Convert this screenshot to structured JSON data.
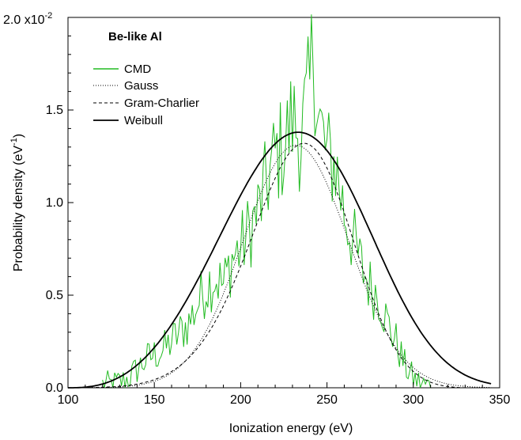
{
  "chart_data": {
    "type": "line",
    "annotation": "Be-like Al",
    "xlabel": "Ionization energy (eV)",
    "ylabel_main": "Probability density (eV",
    "ylabel_sup": "-1",
    "ylabel_close": ")",
    "y_multiplier_base": "2.0 x10",
    "y_multiplier_exp": "-2",
    "xlim": [
      100,
      350
    ],
    "ylim": [
      0,
      0.02
    ],
    "x_ticks": [
      100,
      150,
      200,
      250,
      300,
      350
    ],
    "x_tick_labels": [
      "100",
      "150",
      "200",
      "250",
      "300",
      "350"
    ],
    "y_ticks": [
      0,
      0.005,
      0.01,
      0.015
    ],
    "y_tick_labels": [
      "0.0",
      "0.5",
      "1.0",
      "1.5"
    ],
    "grid": false,
    "legend_position": "top-left",
    "series": [
      {
        "name": "CMD",
        "style": "solid",
        "color": "#22bb22",
        "kind": "noisy",
        "x": [
          120,
          125,
          130,
          135,
          140,
          145,
          150,
          155,
          160,
          165,
          170,
          175,
          180,
          185,
          190,
          195,
          200,
          205,
          210,
          215,
          220,
          225,
          230,
          235,
          240,
          242,
          245,
          250,
          255,
          260,
          265,
          270,
          275,
          280,
          285,
          290,
          295,
          300,
          305,
          310
        ],
        "y": [
          0.0002,
          0.0002,
          0.0003,
          0.0005,
          0.001,
          0.0015,
          0.0018,
          0.002,
          0.0025,
          0.003,
          0.0035,
          0.0045,
          0.0055,
          0.006,
          0.0055,
          0.007,
          0.0075,
          0.0085,
          0.0095,
          0.011,
          0.0125,
          0.013,
          0.0145,
          0.0135,
          0.016,
          0.0188,
          0.0145,
          0.0125,
          0.012,
          0.0095,
          0.008,
          0.0065,
          0.0055,
          0.005,
          0.0035,
          0.0025,
          0.0012,
          0.0005,
          0.0002,
          0.0001
        ]
      },
      {
        "name": "Gauss",
        "style": "dotted",
        "color": "#000000",
        "kind": "gauss",
        "mu": 232,
        "sigma": 30.5,
        "peak": 0.0131
      },
      {
        "name": "Gram-Charlier",
        "style": "dashed",
        "color": "#000000",
        "kind": "gramcharlier",
        "mu": 233,
        "sigma": 30,
        "peak": 0.0131
      },
      {
        "name": "Weibull",
        "style": "solid",
        "color": "#000000",
        "kind": "weibull",
        "mode": 239,
        "peak": 0.0138
      }
    ]
  }
}
